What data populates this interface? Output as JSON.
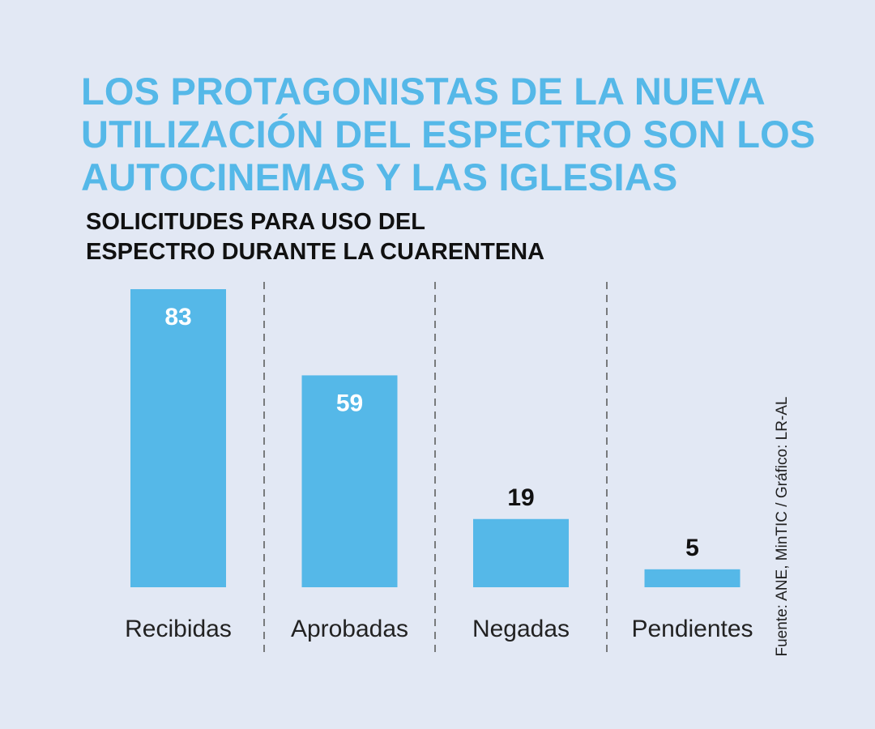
{
  "title_lines": [
    "LOS PROTAGONISTAS DE LA NUEVA",
    "UTILIZACIÓN DEL ESPECTRO SON LOS",
    "AUTOCINEMAS Y LAS IGLESIAS"
  ],
  "subtitle_lines": [
    "SOLICITUDES PARA USO DEL",
    "ESPECTRO DURANTE LA CUARENTENA"
  ],
  "source": "Fuente: ANE, MinTIC / Gráfico: LR-AL",
  "colors": {
    "background": "#e2e8f4",
    "bar": "#55b8e8",
    "title": "#55b8e8",
    "text": "#111111",
    "label_inside": "#ffffff",
    "divider": "#555555"
  },
  "chart_data": {
    "type": "bar",
    "title": "SOLICITUDES PARA USO DEL ESPECTRO DURANTE LA CUARENTENA",
    "categories": [
      "Recibidas",
      "Aprobadas",
      "Negadas",
      "Pendientes"
    ],
    "values": [
      83,
      59,
      19,
      5
    ],
    "data_labels": [
      "83",
      "59",
      "19",
      "5"
    ],
    "xlabel": "",
    "ylabel": "",
    "ylim": [
      0,
      83
    ],
    "grid": false,
    "legend": "none"
  }
}
